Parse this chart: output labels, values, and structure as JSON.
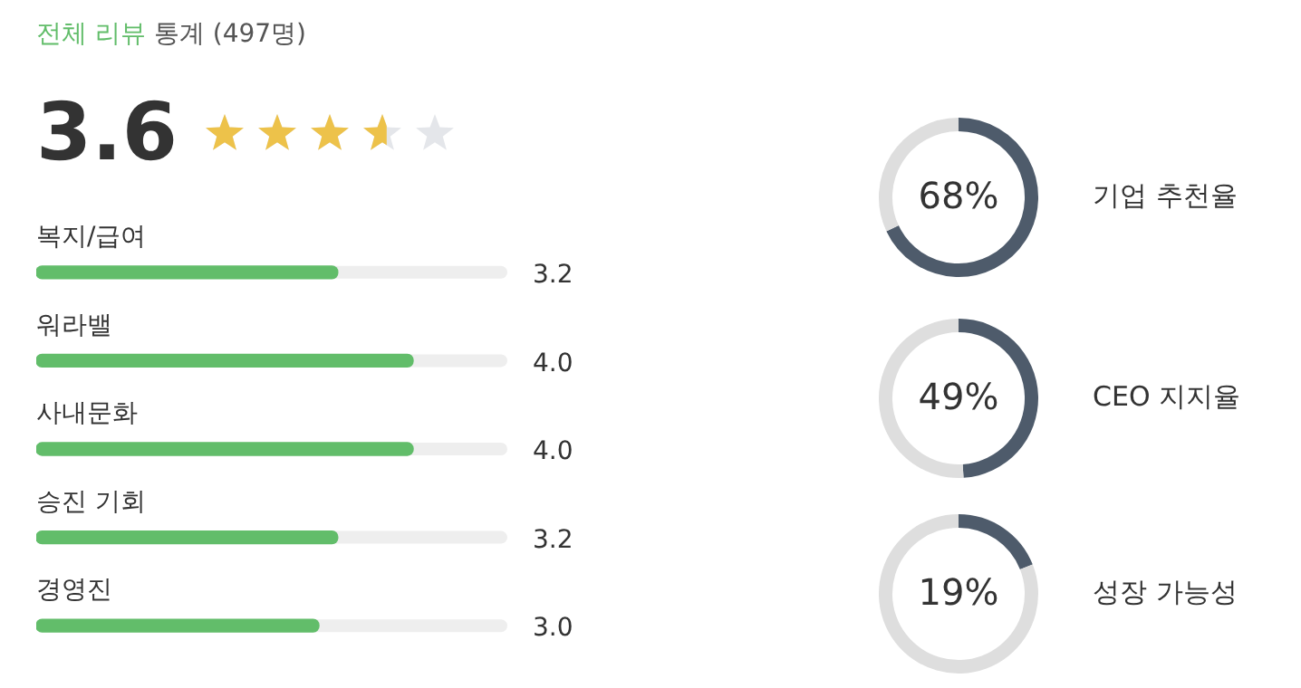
{
  "chart_data": [
    {
      "type": "other",
      "title": "전체 리뷰",
      "subtitle": "통계 (497명)",
      "annotations": [
        "3.6"
      ]
    },
    {
      "type": "bar",
      "orientation": "horizontal",
      "categories": [
        "복지/급여",
        "워라밸",
        "사내문화",
        "승진 기회",
        "경영진"
      ],
      "values": [
        3.2,
        4.0,
        4.0,
        3.2,
        3.0
      ],
      "value_labels": [
        "3.2",
        "4.0",
        "4.0",
        "3.2",
        "3.0"
      ],
      "color": "#62bd6a",
      "xlim": [
        0,
        5
      ],
      "tick_labels": false,
      "grid": false,
      "legend": false
    },
    {
      "type": "donut",
      "title": "기업 추천율",
      "categories": [
        null,
        null
      ],
      "values": [
        68,
        32
      ],
      "colors": [
        "#4e5b6b",
        "#dedede"
      ],
      "value_labels": [
        "68%",
        null
      ],
      "legend": false
    },
    {
      "type": "donut",
      "title": "CEO 지지율",
      "categories": [
        null,
        null
      ],
      "values": [
        49,
        51
      ],
      "colors": [
        "#4e5b6b",
        "#dedede"
      ],
      "value_labels": [
        "49%",
        null
      ],
      "legend": false
    },
    {
      "type": "donut",
      "title": "성장 가능성",
      "categories": [
        null,
        null
      ],
      "values": [
        19,
        81
      ],
      "colors": [
        "#4e5b6b",
        "#dedede"
      ],
      "value_labels": [
        "19%",
        null
      ],
      "legend": false
    }
  ]
}
